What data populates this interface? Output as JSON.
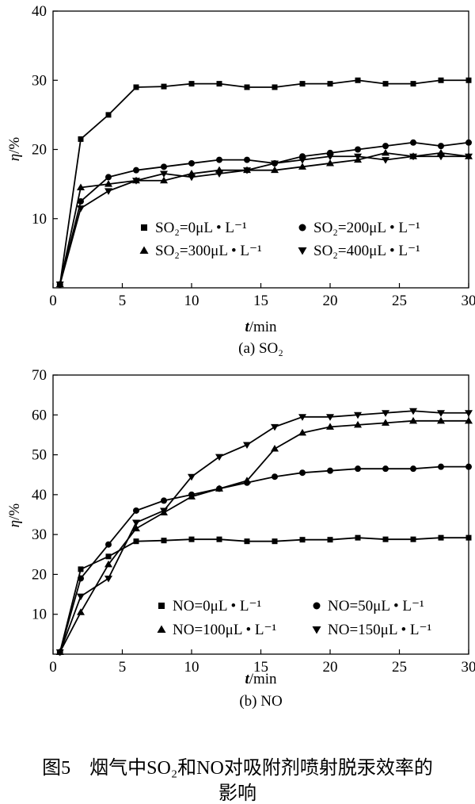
{
  "chart_data": [
    {
      "type": "line",
      "caption": "(a)  SO₂",
      "xlabel_var": "t",
      "xlabel_unit": "/min",
      "ylabel_var": "η",
      "ylabel_unit": "/%",
      "xlim": [
        0,
        30
      ],
      "ylim": [
        0,
        40
      ],
      "xticks": [
        0,
        5,
        10,
        15,
        20,
        25,
        30
      ],
      "yticks": [
        10,
        20,
        30,
        40
      ],
      "grid": false,
      "legend_position": "bottom-right",
      "x": [
        0.5,
        2,
        4,
        6,
        8,
        10,
        12,
        14,
        16,
        18,
        20,
        22,
        24,
        26,
        28,
        30
      ],
      "series": [
        {
          "name": "SO₂=0μL • L⁻¹",
          "marker": "square",
          "values": [
            0.5,
            21.5,
            25,
            29,
            29.1,
            29.5,
            29.5,
            29,
            29,
            29.5,
            29.5,
            30,
            29.5,
            29.5,
            30,
            30
          ]
        },
        {
          "name": "SO₂=200μL • L⁻¹",
          "marker": "circle",
          "values": [
            0.5,
            12.5,
            16,
            17,
            17.5,
            18,
            18.5,
            18.5,
            18,
            19,
            19.5,
            20,
            20.5,
            21,
            20.5,
            21
          ]
        },
        {
          "name": "SO₂=300μL • L⁻¹",
          "marker": "triangle-up",
          "values": [
            0.5,
            14.5,
            15,
            15.5,
            15.5,
            16.5,
            17,
            17,
            17,
            17.5,
            18,
            18.5,
            19.5,
            19,
            19.5,
            19
          ]
        },
        {
          "name": "SO₂=400μL • L⁻¹",
          "marker": "triangle-down",
          "values": [
            0.5,
            11.5,
            14,
            15.5,
            16.5,
            16,
            16.5,
            17,
            18,
            18.5,
            19,
            19,
            18.5,
            19,
            19,
            19
          ]
        }
      ]
    },
    {
      "type": "line",
      "caption": "(b) NO",
      "xlabel_var": "t",
      "xlabel_unit": "/min",
      "ylabel_var": "η",
      "ylabel_unit": "/%",
      "xlim": [
        0,
        30
      ],
      "ylim": [
        0,
        70
      ],
      "xticks": [
        0,
        5,
        10,
        15,
        20,
        25,
        30
      ],
      "yticks": [
        10,
        20,
        30,
        40,
        50,
        60,
        70
      ],
      "grid": false,
      "legend_position": "bottom-right",
      "x": [
        0.5,
        2,
        4,
        6,
        8,
        10,
        12,
        14,
        16,
        18,
        20,
        22,
        24,
        26,
        28,
        30
      ],
      "series": [
        {
          "name": "NO=0μL • L⁻¹",
          "marker": "square",
          "values": [
            0.5,
            21.3,
            24.5,
            28.3,
            28.5,
            28.8,
            28.8,
            28.3,
            28.3,
            28.7,
            28.7,
            29.2,
            28.8,
            28.8,
            29.2,
            29.2
          ]
        },
        {
          "name": "NO=50μL • L⁻¹",
          "marker": "circle",
          "values": [
            0.5,
            19,
            27.5,
            36,
            38.5,
            40,
            41.5,
            43,
            44.5,
            45.5,
            46,
            46.5,
            46.5,
            46.5,
            47,
            47
          ]
        },
        {
          "name": "NO=100μL • L⁻¹",
          "marker": "triangle-up",
          "values": [
            0.5,
            10.5,
            22.5,
            31.5,
            35.5,
            39.5,
            41.5,
            43.5,
            51.5,
            55.5,
            57,
            57.5,
            58,
            58.5,
            58.5,
            58.5
          ]
        },
        {
          "name": "NO=150μL • L⁻¹",
          "marker": "triangle-down",
          "values": [
            0.5,
            14.5,
            19,
            33,
            36,
            44.5,
            49.5,
            52.5,
            57,
            59.5,
            59.5,
            60,
            60.5,
            61,
            60.5,
            60.5
          ]
        }
      ]
    }
  ],
  "figure_caption": {
    "line1": "图5　烟气中SO₂和NO对吸附剂喷射脱汞效率的",
    "line2": "影响"
  }
}
